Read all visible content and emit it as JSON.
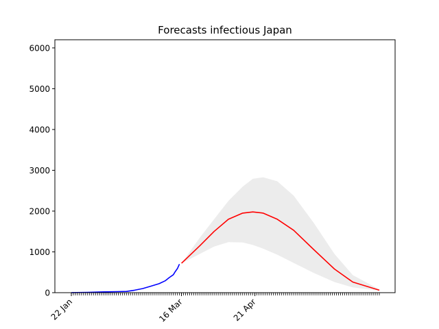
{
  "chart_data": {
    "type": "line",
    "title": "Forecasts infectious Japan",
    "xlabel": "",
    "ylabel": "",
    "x_axis": {
      "kind": "date",
      "start": "2020-01-22",
      "end": "2020-06-21",
      "tick_labels": [
        {
          "date": "2020-01-22",
          "label": "22 Jan"
        },
        {
          "date": "2020-03-16",
          "label": "16 Mar"
        },
        {
          "date": "2020-04-21",
          "label": "21 Apr"
        }
      ],
      "minor_ticks": "daily"
    },
    "ylim": [
      0,
      6200
    ],
    "y_ticks": [
      0,
      1000,
      2000,
      3000,
      4000,
      5000,
      6000
    ],
    "grid": false,
    "legend": "none",
    "series": [
      {
        "role": "observed",
        "color": "#0000ff",
        "x": [
          "2020-01-22",
          "2020-01-30",
          "2020-02-07",
          "2020-02-13",
          "2020-02-18",
          "2020-02-22",
          "2020-02-26",
          "2020-03-01",
          "2020-03-05",
          "2020-03-08",
          "2020-03-10",
          "2020-03-12",
          "2020-03-13",
          "2020-03-14",
          "2020-03-15"
        ],
        "y": [
          2,
          8,
          20,
          25,
          30,
          60,
          100,
          160,
          220,
          290,
          370,
          440,
          520,
          590,
          700
        ]
      },
      {
        "role": "forecast",
        "color": "#ff0000",
        "x": [
          "2020-03-16",
          "2020-03-25",
          "2020-04-01",
          "2020-04-08",
          "2020-04-15",
          "2020-04-20",
          "2020-04-25",
          "2020-05-02",
          "2020-05-10",
          "2020-05-20",
          "2020-05-30",
          "2020-06-08",
          "2020-06-21"
        ],
        "y": [
          720,
          1150,
          1500,
          1800,
          1950,
          1980,
          1950,
          1800,
          1530,
          1050,
          580,
          260,
          60
        ]
      }
    ],
    "band": {
      "color": "#ececec",
      "x": [
        "2020-03-16",
        "2020-03-25",
        "2020-04-01",
        "2020-04-08",
        "2020-04-15",
        "2020-04-20",
        "2020-04-25",
        "2020-05-02",
        "2020-05-10",
        "2020-05-20",
        "2020-05-30",
        "2020-06-08",
        "2020-06-21"
      ],
      "lower": [
        720,
        950,
        1130,
        1240,
        1230,
        1170,
        1080,
        930,
        730,
        480,
        260,
        130,
        50
      ],
      "upper": [
        720,
        1350,
        1800,
        2250,
        2600,
        2790,
        2830,
        2730,
        2380,
        1700,
        950,
        430,
        80
      ]
    }
  }
}
